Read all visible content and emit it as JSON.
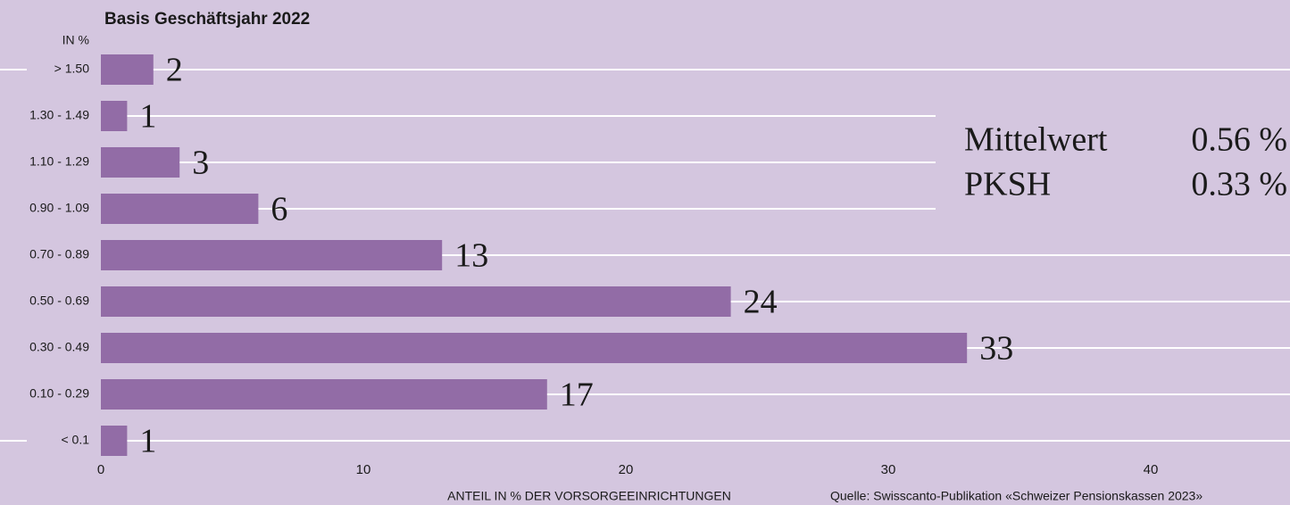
{
  "chart_data": {
    "type": "barh",
    "title": "Basis Geschäftsjahr 2022",
    "y_axis_label": "IN %",
    "x_axis_label": "ANTEIL IN % DER VORSORGEEINRICHTUNGEN",
    "source": "Quelle: Swisscanto-Publikation «Schweizer Pensionskassen 2023»",
    "categories": [
      "> 1.50",
      "1.30 - 1.49",
      "1.10 - 1.29",
      "0.90 - 1.09",
      "0.70 - 0.89",
      "0.50 - 0.69",
      "0.30 - 0.49",
      "0.10 - 0.29",
      "< 0.1"
    ],
    "values": [
      2,
      1,
      3,
      6,
      13,
      24,
      33,
      17,
      1
    ],
    "color": "#926ca6",
    "xlim": [
      0,
      45
    ],
    "xticks": [
      0,
      10,
      20,
      30,
      40
    ],
    "stats": [
      {
        "label": "Mittelwert",
        "value": "0.56 %"
      },
      {
        "label": "PKSH",
        "value": "0.33 %"
      }
    ]
  }
}
